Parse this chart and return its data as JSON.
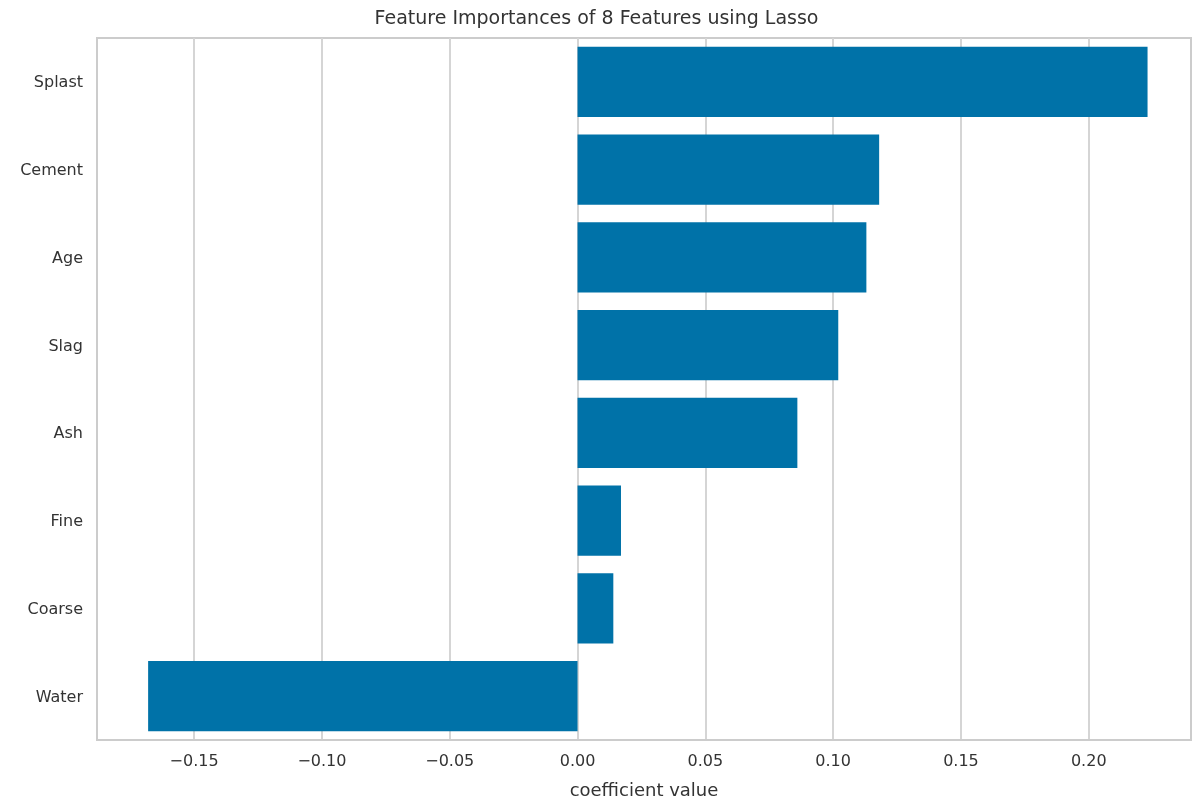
{
  "chart_data": {
    "type": "bar",
    "orientation": "horizontal",
    "title": "Feature Importances of 8 Features using Lasso",
    "xlabel": "coefficient value",
    "categories": [
      "Splast",
      "Cement",
      "Age",
      "Slag",
      "Ash",
      "Fine",
      "Coarse",
      "Water"
    ],
    "values": [
      0.223,
      0.118,
      0.113,
      0.102,
      0.086,
      0.017,
      0.014,
      -0.168
    ],
    "color": "#0072a8",
    "xlim": [
      -0.188,
      0.24
    ],
    "xticks": [
      {
        "value": -0.15,
        "label": "−0.15"
      },
      {
        "value": -0.1,
        "label": "−0.10"
      },
      {
        "value": -0.05,
        "label": "−0.05"
      },
      {
        "value": 0,
        "label": "0.00"
      },
      {
        "value": 0.05,
        "label": "0.05"
      },
      {
        "value": 0.1,
        "label": "0.10"
      },
      {
        "value": 0.15,
        "label": "0.15"
      },
      {
        "value": 0.2,
        "label": "0.20"
      }
    ],
    "grid": "x"
  }
}
